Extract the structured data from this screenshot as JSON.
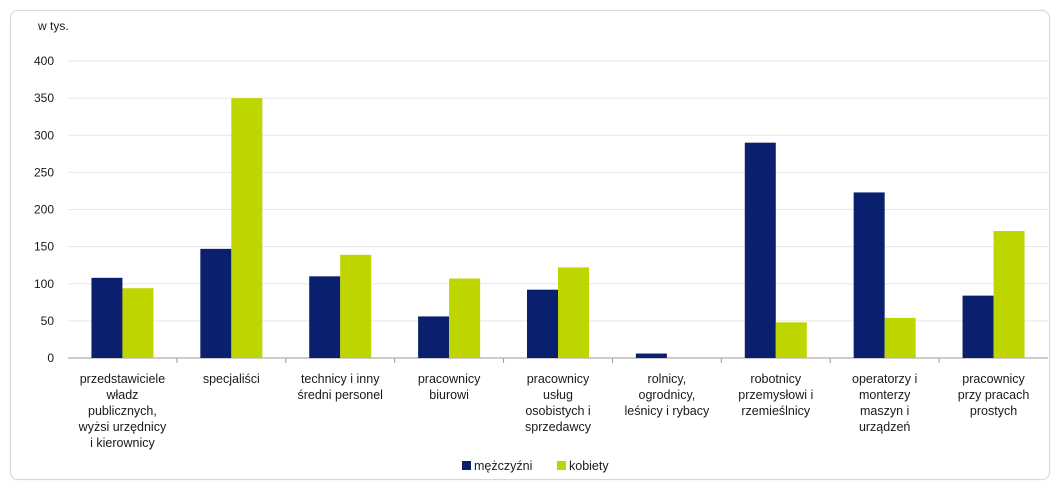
{
  "chart_data": {
    "type": "bar",
    "unit_label": "w tys.",
    "categories": [
      [
        "przedstawiciele",
        "władz",
        "publicznych,",
        "wyżsi urzędnicy",
        "i kierownicy"
      ],
      [
        "specjaliści"
      ],
      [
        "technicy i inny",
        "średni personel"
      ],
      [
        "pracownicy",
        "biurowi"
      ],
      [
        "pracownicy",
        "usług",
        "osobistych i",
        "sprzedawcy"
      ],
      [
        "rolnicy,",
        "ogrodnicy,",
        "leśnicy i rybacy"
      ],
      [
        "robotnicy",
        "przemysłowi i",
        "rzemieślnicy"
      ],
      [
        "operatorzy i",
        "monterzy",
        "maszyn i",
        "urządzeń"
      ],
      [
        "pracownicy",
        "przy pracach",
        "prostych"
      ]
    ],
    "series": [
      {
        "name": "mężczyźni",
        "color": "#0a1f6e",
        "values": [
          108,
          147,
          110,
          56,
          92,
          6,
          290,
          223,
          84
        ]
      },
      {
        "name": "kobiety",
        "color": "#bfd500",
        "values": [
          94,
          350,
          139,
          107,
          122,
          1,
          48,
          54,
          171
        ]
      }
    ],
    "ylim": [
      0,
      400
    ],
    "yticks": [
      0,
      50,
      100,
      150,
      200,
      250,
      300,
      350,
      400
    ],
    "grid": true,
    "legend_position": "bottom-center"
  }
}
